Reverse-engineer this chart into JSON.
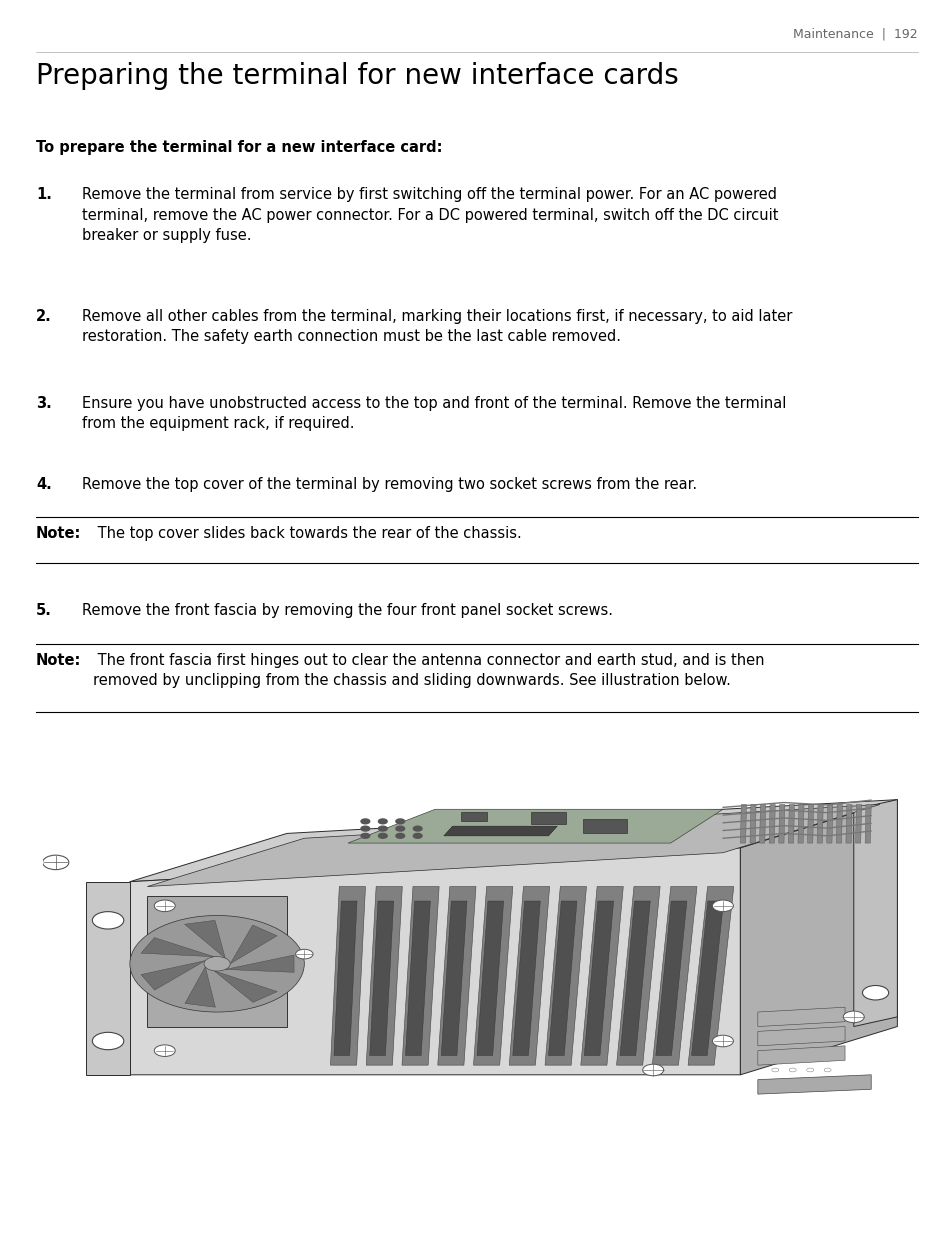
{
  "page_header": "Maintenance  |  192",
  "title": "Preparing the terminal for new interface cards",
  "subtitle": "To prepare the terminal for a new interface card:",
  "steps": [
    {
      "num": "1.",
      "text": "Remove the terminal from service by first switching off the terminal power. For an AC powered\nterminal, remove the AC power connector. For a DC powered terminal, switch off the DC circuit\nbreaker or supply fuse."
    },
    {
      "num": "2.",
      "text": "Remove all other cables from the terminal, marking their locations first, if necessary, to aid later\nrestoration. The safety earth connection must be the last cable removed."
    },
    {
      "num": "3.",
      "text": "Ensure you have unobstructed access to the top and front of the terminal. Remove the terminal\nfrom the equipment rack, if required."
    },
    {
      "num": "4.",
      "text": "Remove the top cover of the terminal by removing two socket screws from the rear."
    },
    {
      "num": "5.",
      "text": "Remove the front fascia by removing the four front panel socket screws."
    }
  ],
  "notes": [
    {
      "after_step": 4,
      "bold_prefix": "Note:",
      "text": " The top cover slides back towards the rear of the chassis."
    },
    {
      "after_step": 5,
      "bold_prefix": "Note:",
      "text": " The front fascia first hinges out to clear the antenna connector and earth stud, and is then\nremoved by unclipping from the chassis and sliding downwards. See illustration below."
    }
  ],
  "bg_color": "#ffffff",
  "text_color": "#000000",
  "header_color": "#666666",
  "title_fontsize": 20,
  "header_fontsize": 9,
  "subtitle_fontsize": 10.5,
  "step_num_fontsize": 10.5,
  "step_text_fontsize": 10.5,
  "note_fontsize": 10.5
}
